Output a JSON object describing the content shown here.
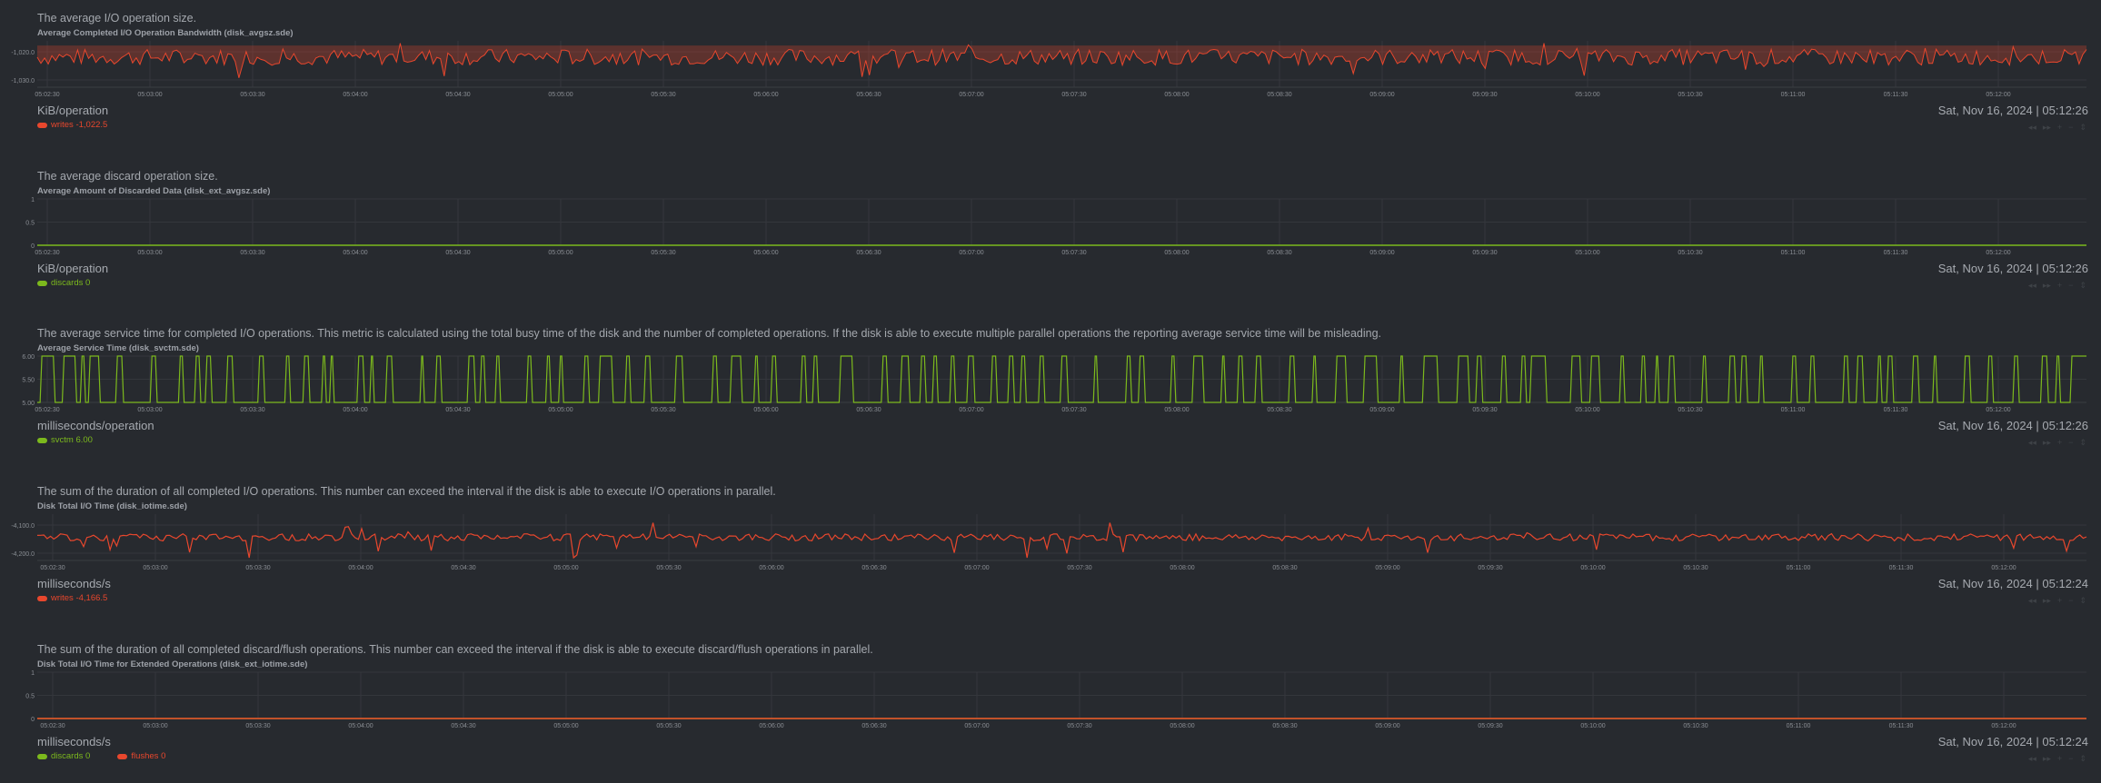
{
  "time_ticks": [
    "05:02:30",
    "05:03:00",
    "05:03:30",
    "05:04:00",
    "05:04:30",
    "05:05:00",
    "05:05:30",
    "05:06:00",
    "05:06:30",
    "05:07:00",
    "05:07:30",
    "05:08:00",
    "05:08:30",
    "05:09:00",
    "05:09:30",
    "05:10:00",
    "05:10:30",
    "05:11:00",
    "05:11:30",
    "05:12:00"
  ],
  "toolbar": {
    "rewind": "◂◂",
    "forward": "▸▸",
    "zoom_in": "+",
    "zoom_out": "−",
    "reset": "⇕"
  },
  "colors": {
    "background": "#272a2f",
    "red": "#e8472d",
    "green": "#7cb91d",
    "grid": "#34373c"
  },
  "sections": [
    {
      "description": "The average I/O operation size.",
      "title": "Average Completed I/O Operation Bandwidth (disk_avgsz.sde)",
      "units": "KiB/operation",
      "timestamp": "Sat, Nov 16, 2024 | 05:12:26",
      "legend": [
        {
          "name": "writes",
          "value": "-1,022.5",
          "color": "#e8472d"
        }
      ]
    },
    {
      "description": "The average discard operation size.",
      "title": "Average Amount of Discarded Data (disk_ext_avgsz.sde)",
      "units": "KiB/operation",
      "timestamp": "Sat, Nov 16, 2024 | 05:12:26",
      "legend": [
        {
          "name": "discards",
          "value": "0",
          "color": "#7cb91d"
        }
      ]
    },
    {
      "description": "The average service time for completed I/O operations. This metric is calculated using the total busy time of the disk and the number of completed operations. If the disk is able to execute multiple parallel operations the reporting average service time will be misleading.",
      "title": "Average Service Time (disk_svctm.sde)",
      "units": "milliseconds/operation",
      "timestamp": "Sat, Nov 16, 2024 | 05:12:26",
      "legend": [
        {
          "name": "svctm",
          "value": "6.00",
          "color": "#7cb91d"
        }
      ]
    },
    {
      "description": "The sum of the duration of all completed I/O operations. This number can exceed the interval if the disk is able to execute I/O operations in parallel.",
      "title": "Disk Total I/O Time (disk_iotime.sde)",
      "units": "milliseconds/s",
      "timestamp": "Sat, Nov 16, 2024 | 05:12:24",
      "legend": [
        {
          "name": "writes",
          "value": "-4,166.5",
          "color": "#e8472d"
        }
      ]
    },
    {
      "description": "The sum of the duration of all completed discard/flush operations. This number can exceed the interval if the disk is able to execute discard/flush operations in parallel.",
      "title": "Disk Total I/O Time for Extended Operations (disk_ext_iotime.sde)",
      "units": "milliseconds/s",
      "timestamp": "Sat, Nov 16, 2024 | 05:12:24",
      "legend": [
        {
          "name": "discards",
          "value": "0",
          "color": "#7cb91d"
        },
        {
          "name": "flushes",
          "value": "0",
          "color": "#e8472d"
        }
      ]
    }
  ],
  "chart_data": [
    {
      "type": "area",
      "title": "Average Completed I/O Operation Bandwidth (disk_avgsz.sde)",
      "ylabel": "KiB/operation",
      "x_range": [
        "05:02:20",
        "05:12:26"
      ],
      "yticks": [
        "-1,020.0",
        "-1,030.0"
      ],
      "ylim": [
        -1035,
        -1015
      ],
      "series": [
        {
          "name": "writes",
          "color": "#e8472d",
          "last": -1022.5,
          "approx_mean": -1022,
          "approx_range": [
            -1031,
            -1016
          ]
        }
      ]
    },
    {
      "type": "line",
      "title": "Average Amount of Discarded Data (disk_ext_avgsz.sde)",
      "ylabel": "KiB/operation",
      "x_range": [
        "05:02:20",
        "05:12:26"
      ],
      "yticks": [
        "1",
        "0.5",
        "0"
      ],
      "ylim": [
        0,
        1
      ],
      "series": [
        {
          "name": "discards",
          "color": "#7cb91d",
          "values": [
            0,
            0
          ]
        }
      ]
    },
    {
      "type": "line",
      "title": "Average Service Time (disk_svctm.sde)",
      "ylabel": "milliseconds/operation",
      "x_range": [
        "05:02:20",
        "05:12:26"
      ],
      "yticks": [
        "6.00",
        "5.50",
        "5.00"
      ],
      "ylim": [
        5,
        6
      ],
      "series": [
        {
          "name": "svctm",
          "color": "#7cb91d",
          "levels": [
            5.0,
            6.0
          ],
          "last": 6.0
        }
      ]
    },
    {
      "type": "line",
      "title": "Disk Total I/O Time (disk_iotime.sde)",
      "ylabel": "milliseconds/s",
      "x_range": [
        "05:02:20",
        "05:12:24"
      ],
      "yticks": [
        "-4,100.0",
        "-4,200.0"
      ],
      "ylim": [
        -4250,
        -4080
      ],
      "series": [
        {
          "name": "writes",
          "color": "#e8472d",
          "last": -4166.5,
          "approx_mean": -4165,
          "approx_range": [
            -4240,
            -4110
          ]
        }
      ]
    },
    {
      "type": "line",
      "title": "Disk Total I/O Time for Extended Operations (disk_ext_iotime.sde)",
      "ylabel": "milliseconds/s",
      "x_range": [
        "05:02:20",
        "05:12:24"
      ],
      "yticks": [
        "1",
        "0.5",
        "0"
      ],
      "ylim": [
        0,
        1
      ],
      "series": [
        {
          "name": "discards",
          "color": "#7cb91d",
          "values": [
            0,
            0
          ]
        },
        {
          "name": "flushes",
          "color": "#e8472d",
          "values": [
            0,
            0
          ]
        }
      ]
    }
  ]
}
